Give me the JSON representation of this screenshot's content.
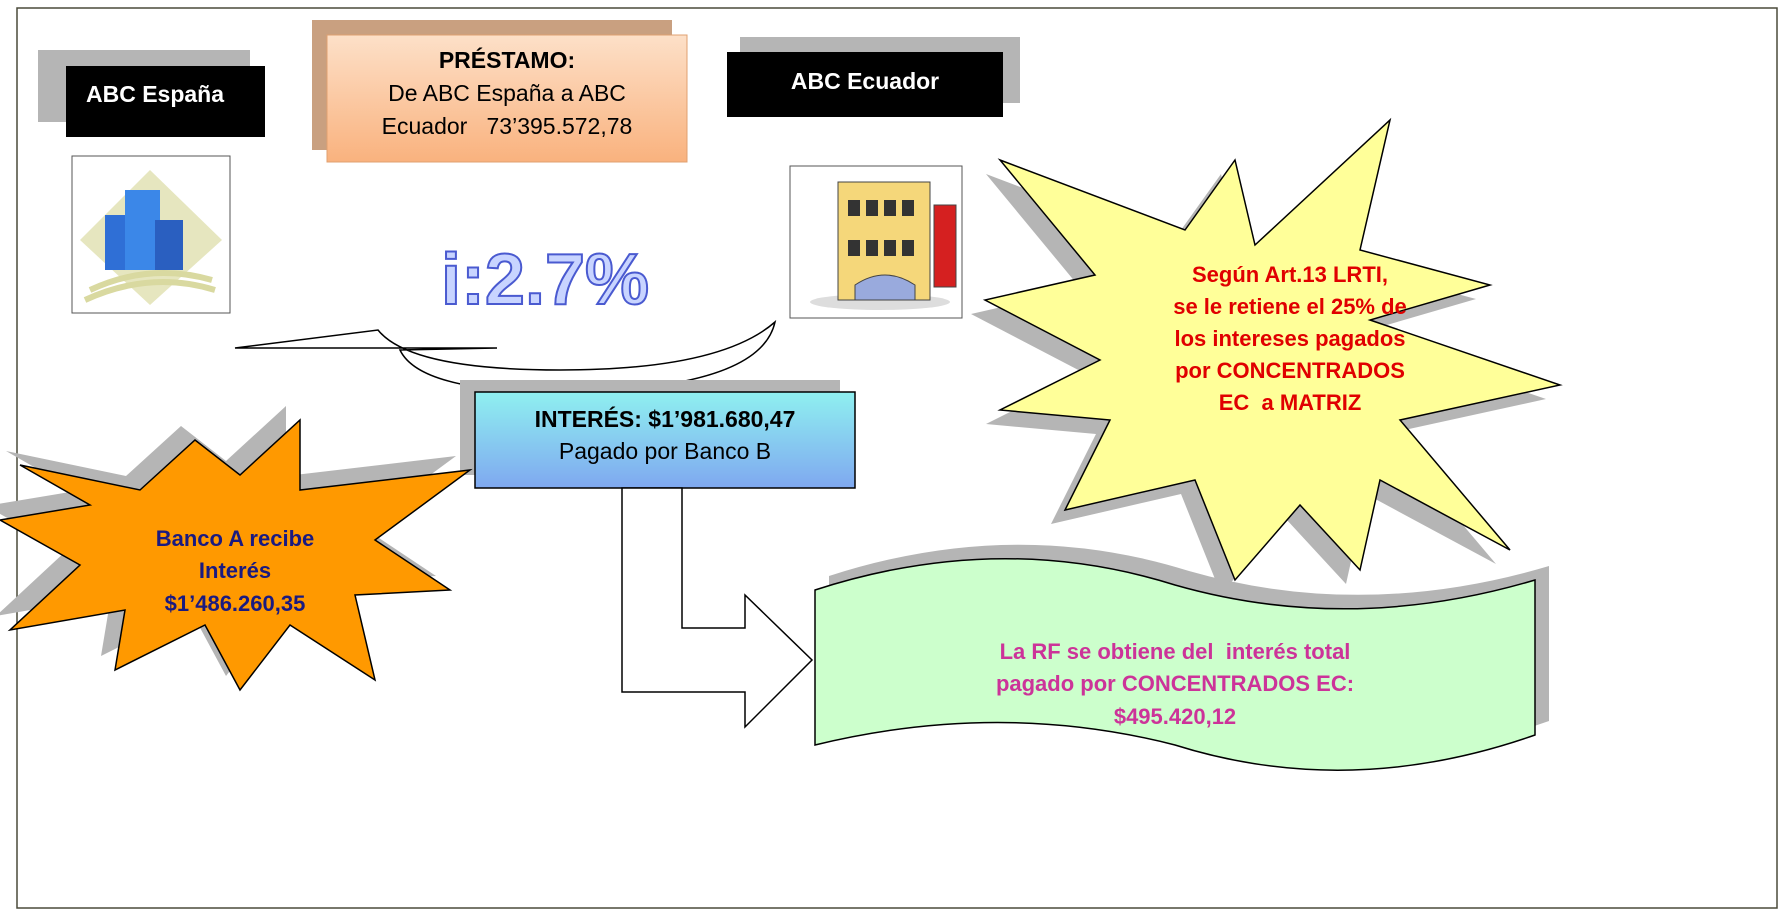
{
  "nodes": [
    {
      "label": "ABC España"
    },
    {
      "lines": [
        "PRÉSTAMO:",
        "De ABC España a ABC",
        "Ecuador   73’395.572,78"
      ]
    },
    {
      "label": "ABC Ecuador"
    },
    {
      "label": "i:2.7%"
    },
    {
      "lines": [
        "INTERÉS: $1’981.680,47",
        "Pagado por Banco B"
      ]
    },
    {
      "lines": [
        "Según Art.13 LRTI,",
        "se le retiene el 25% de",
        "los intereses pagados",
        "por CONCENTRADOS",
        "EC  a MATRIZ"
      ]
    },
    {
      "lines": [
        "Banco A recibe",
        "Interés",
        "$1’486.260,35"
      ]
    },
    {
      "lines": [
        "La RF se obtiene del  interés total",
        "pagado por CONCENTRADOS EC:",
        "$495.420,12"
      ]
    }
  ]
}
